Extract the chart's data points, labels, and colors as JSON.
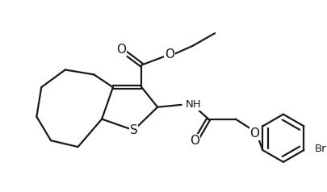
{
  "bg_color": "#ffffff",
  "line_color": "#1a1a1a",
  "line_width": 1.6,
  "font_size": 9.5,
  "label_S": "S",
  "label_O_ester_dbl": "O",
  "label_O_ester_single": "O",
  "label_O_amide": "O",
  "label_O_phenoxy": "O",
  "label_NH": "NH",
  "label_Br": "Br"
}
